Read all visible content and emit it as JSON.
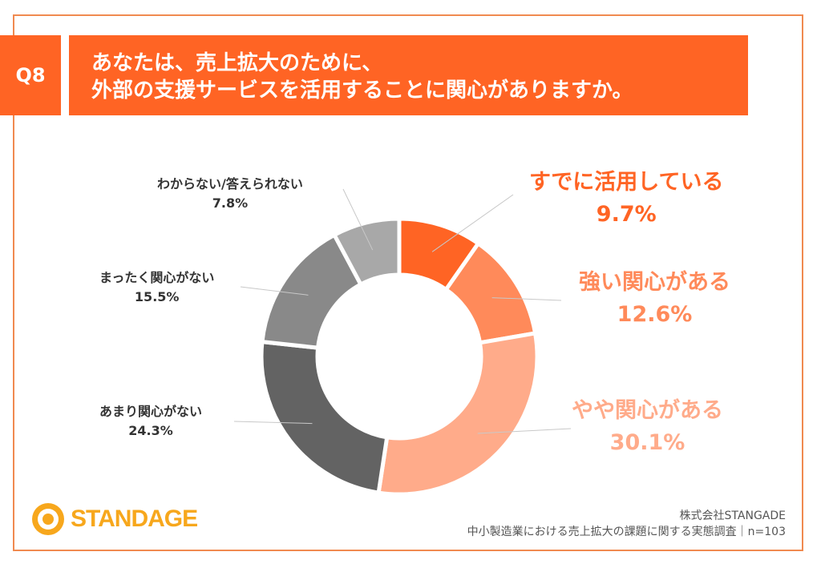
{
  "question": {
    "number": "Q8",
    "line1": "あなたは、売上拡大のために、",
    "line2": "外部の支援サービスを活用することに関心がありますか。"
  },
  "chart_data": {
    "type": "pie",
    "style": "donut",
    "title": "",
    "categories": [
      "すでに活用している",
      "強い関心がある",
      "やや関心がある",
      "あまり関心がない",
      "まったく関心がない",
      "わからない/答えられない"
    ],
    "values": [
      9.7,
      12.6,
      30.1,
      24.3,
      15.5,
      7.8
    ],
    "value_labels": [
      "9.7%",
      "12.6%",
      "30.1%",
      "24.3%",
      "15.5%",
      "7.8%"
    ],
    "colors": [
      "#ff6424",
      "#ff8a5a",
      "#ffab8a",
      "#636363",
      "#898989",
      "#a8a8a8"
    ],
    "label_colors": [
      "#ff6424",
      "#ff8a5a",
      "#ffab8a",
      "#333333",
      "#333333",
      "#333333"
    ],
    "start_angle": "12 o'clock",
    "direction": "clockwise"
  },
  "footer": {
    "company": "株式会社STANGADE",
    "survey": "中小製造業における売上拡大の課題に関する実態調査｜n=103",
    "logo_text": "STANDAGE"
  }
}
